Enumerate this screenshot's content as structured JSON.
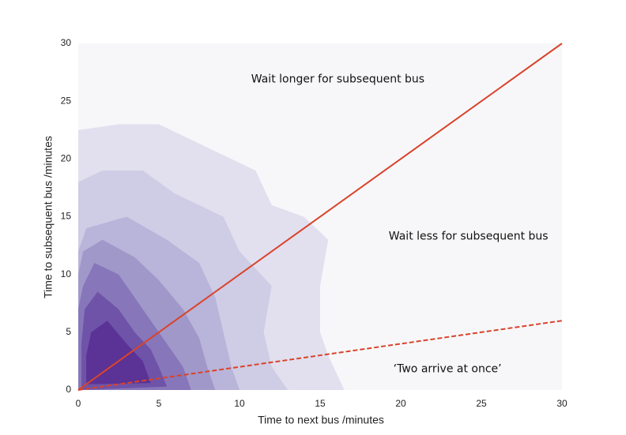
{
  "chart_data": {
    "type": "density",
    "xlabel": "Time to next bus /minutes",
    "ylabel": "Time to subsequent bus /minutes",
    "xlim": [
      0,
      30
    ],
    "ylim": [
      0,
      30
    ],
    "xticks": [
      0,
      5,
      10,
      15,
      20,
      25,
      30
    ],
    "yticks": [
      0,
      5,
      10,
      15,
      20,
      25,
      30
    ],
    "background": "#f7f7f9",
    "contour_colors": [
      "#e2e0ef",
      "#cfcce5",
      "#b9b4d9",
      "#a198ca",
      "#8776b9",
      "#6e53a8",
      "#5b3295"
    ],
    "contours": [
      {
        "x": [
          0,
          16.5,
          16,
          15.5,
          15,
          15,
          15.5,
          14,
          12,
          11,
          8,
          5,
          2.5,
          0
        ],
        "y": [
          0,
          0,
          1.5,
          3,
          5,
          9,
          13,
          15,
          16,
          19,
          21,
          23,
          23,
          22.5
        ]
      },
      {
        "x": [
          0,
          13,
          12,
          11.5,
          12,
          10,
          9,
          6,
          4,
          1.5,
          0
        ],
        "y": [
          0,
          0,
          2,
          5,
          9,
          12,
          15,
          17,
          19,
          19,
          18
        ]
      },
      {
        "x": [
          0,
          10,
          9.5,
          9,
          8.5,
          7.5,
          5.5,
          3,
          0.5,
          0
        ],
        "y": [
          0,
          0,
          2,
          5,
          8,
          11,
          13,
          15,
          14,
          12
        ]
      },
      {
        "x": [
          0,
          8.5,
          8,
          7.5,
          6.5,
          5,
          3.5,
          1.5,
          0.3,
          0
        ],
        "y": [
          0,
          0,
          2,
          4.5,
          7,
          9.5,
          11.5,
          13,
          12,
          10
        ]
      },
      {
        "x": [
          0,
          7,
          6.5,
          5.5,
          4.5,
          3.5,
          2.5,
          1,
          0.3,
          0
        ],
        "y": [
          0,
          0,
          2,
          4,
          6,
          8,
          10,
          11,
          9,
          7
        ]
      },
      {
        "x": [
          0.2,
          5.5,
          5,
          4.5,
          3.5,
          2.5,
          1.2,
          0.4,
          0.2
        ],
        "y": [
          0,
          0.3,
          2,
          3.5,
          5,
          7,
          8.5,
          7,
          4
        ]
      },
      {
        "x": [
          0.5,
          4.5,
          4,
          3,
          1.8,
          0.8,
          0.5
        ],
        "y": [
          0.5,
          0.6,
          2.5,
          4,
          6,
          5,
          3
        ]
      }
    ],
    "lines": [
      {
        "x": [
          0,
          30
        ],
        "y": [
          0,
          30
        ],
        "color": "#d9442b",
        "dashed": false
      },
      {
        "x": [
          0,
          30
        ],
        "y": [
          0,
          6
        ],
        "color": "#d9442b",
        "dashed": true
      }
    ],
    "annotations": [
      {
        "text": "Wait longer for subsequent bus",
        "x": 16.1,
        "y": 26.9
      },
      {
        "text": "Wait less for subsequent bus",
        "x": 24.2,
        "y": 13.3
      },
      {
        "text": "‘Two arrive at once’",
        "x": 22.9,
        "y": 1.8
      }
    ]
  }
}
